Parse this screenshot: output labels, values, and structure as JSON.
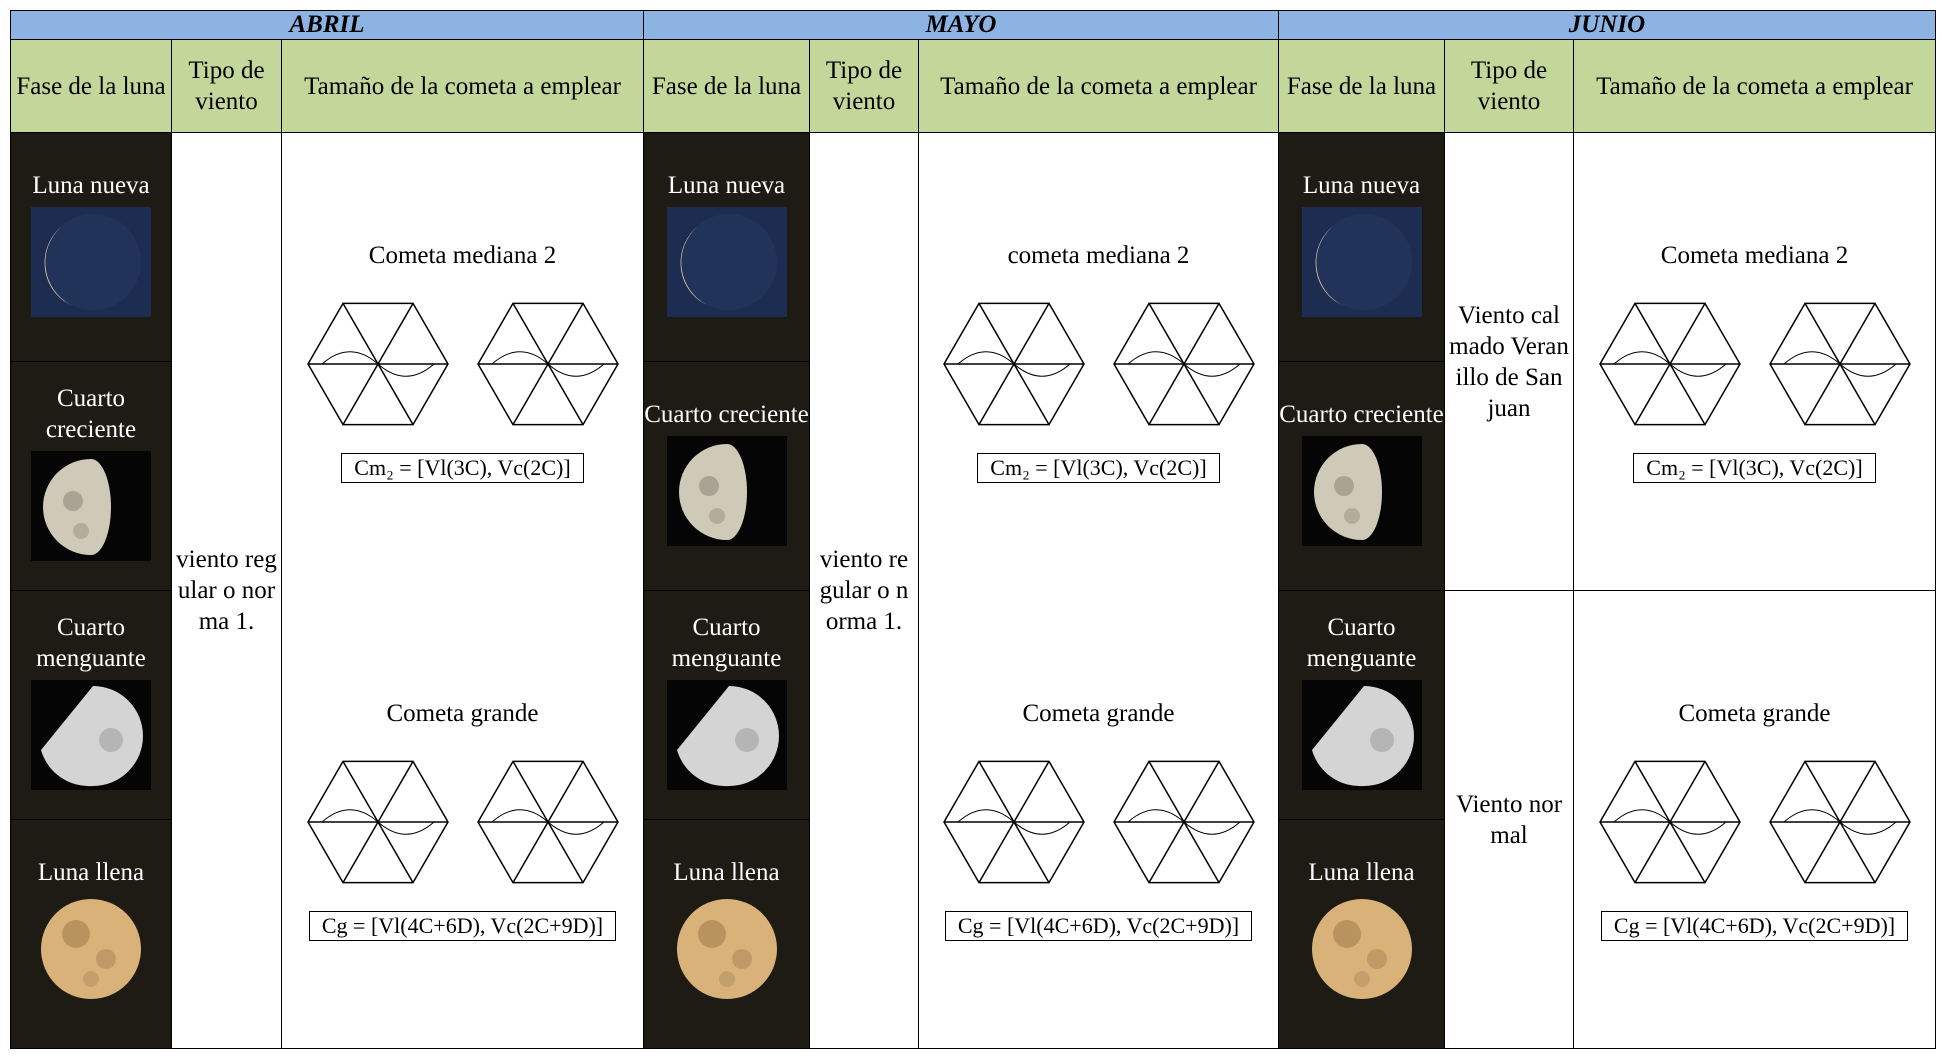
{
  "months": [
    {
      "name": "ABRIL",
      "headers": [
        "Fase de la luna",
        "Tipo de viento",
        "Tamaño de la cometa a emplear"
      ],
      "phases": [
        "Luna nueva",
        "Cuarto creciente",
        "Cuarto menguante",
        "Luna llena"
      ],
      "winds": [
        "viento regular o norma 1."
      ],
      "kites": [
        {
          "title": "Cometa mediana 2",
          "formula": "Cm₂ = [Vl(3C), Vc(2C)]"
        },
        {
          "title": "Cometa grande",
          "formula": "Cg = [Vl(4C+6D), Vc(2C+9D)]"
        }
      ]
    },
    {
      "name": "MAYO",
      "headers": [
        "Fase de la luna",
        "Tipo de viento",
        "Tamaño de la cometa a emplear"
      ],
      "phases": [
        "Luna nueva",
        "Cuarto creciente",
        "Cuarto menguante",
        "Luna llena"
      ],
      "winds": [
        "viento regular o norma 1."
      ],
      "kites": [
        {
          "title": "cometa mediana 2",
          "formula": "Cm₂ = [Vl(3C), Vc(2C)]"
        },
        {
          "title": "Cometa grande",
          "formula": "Cg = [Vl(4C+6D), Vc(2C+9D)]"
        }
      ]
    },
    {
      "name": "JUNIO",
      "headers": [
        "Fase de la luna",
        "Tipo de viento",
        "Tamaño de la cometa a emplear"
      ],
      "phases": [
        "Luna nueva",
        "Cuarto creciente",
        "Cuarto menguante",
        "Luna llena"
      ],
      "winds": [
        "Viento calmado Veranillo de San juan",
        "Viento normal"
      ],
      "kites": [
        {
          "title": "Cometa mediana 2",
          "formula": "Cm₂ = [Vl(3C), Vc(2C)]"
        },
        {
          "title": "Cometa grande",
          "formula": "Cg = [Vl(4C+6D), Vc(2C+9D)]"
        }
      ]
    }
  ]
}
